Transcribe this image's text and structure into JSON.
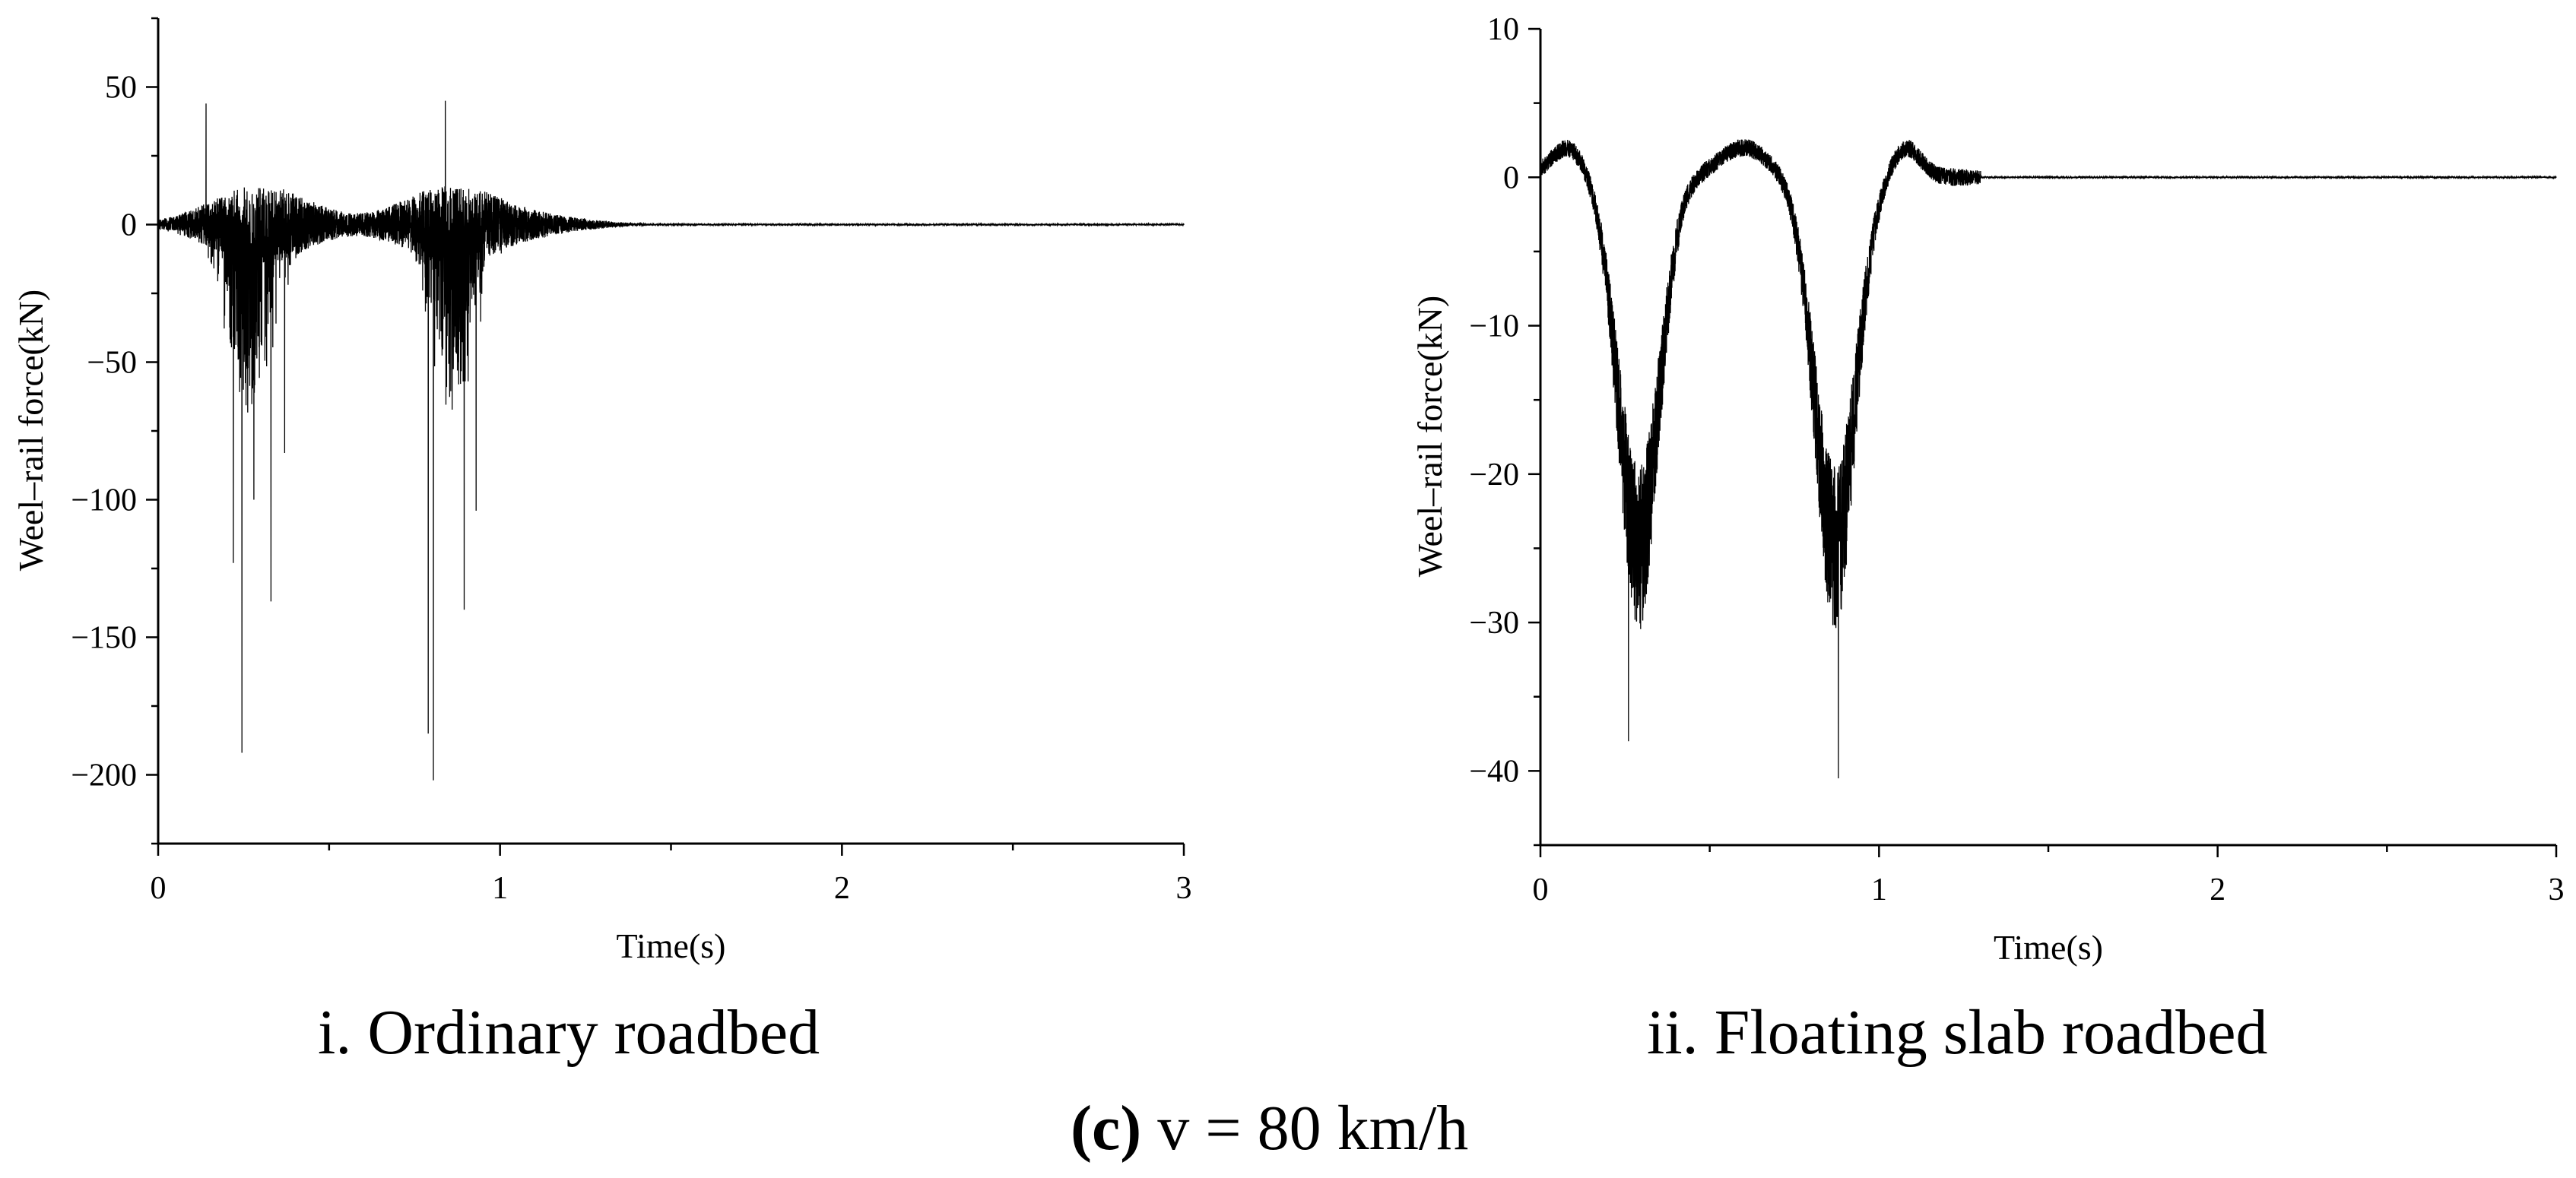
{
  "chart_data": [
    {
      "type": "line",
      "title": "i. Ordinary roadbed",
      "xlabel": "Time(s)",
      "ylabel": "Weel–rail force(kN)",
      "xlim": [
        0,
        3
      ],
      "ylim": [
        -225,
        75
      ],
      "xticks": [
        0,
        1,
        2,
        3
      ],
      "xtick_labels": [
        "0",
        "1",
        "2",
        "3"
      ],
      "yticks": [
        50,
        0,
        -50,
        -100,
        -150,
        -200
      ],
      "ytick_labels": [
        "50",
        "0",
        "−50",
        "−100",
        "−150",
        "−200"
      ],
      "series": [
        {
          "name": "Wheel-rail force",
          "peaks": [
            {
              "t": 0.14,
              "value": 44
            },
            {
              "t": 0.22,
              "value": -123
            },
            {
              "t": 0.245,
              "value": -192
            },
            {
              "t": 0.28,
              "value": -100
            },
            {
              "t": 0.33,
              "value": -137
            },
            {
              "t": 0.37,
              "value": -83
            },
            {
              "t": 0.79,
              "value": -185
            },
            {
              "t": 0.805,
              "value": -202
            },
            {
              "t": 0.84,
              "value": 45
            },
            {
              "t": 0.895,
              "value": -140
            },
            {
              "t": 0.93,
              "value": -104
            }
          ],
          "settles_to": 0,
          "settle_time": 1.5
        }
      ]
    },
    {
      "type": "line",
      "title": "ii. Floating slab roadbed",
      "xlabel": "Time(s)",
      "ylabel": "Weel–rail force(kN)",
      "xlim": [
        0,
        3
      ],
      "ylim": [
        -45,
        10
      ],
      "xticks": [
        0,
        1,
        2,
        3
      ],
      "xtick_labels": [
        "0",
        "1",
        "2",
        "3"
      ],
      "yticks": [
        10,
        0,
        -10,
        -20,
        -30,
        -40
      ],
      "ytick_labels": [
        "10",
        "0",
        "−10",
        "−20",
        "−30",
        "−40"
      ],
      "series": [
        {
          "name": "Wheel-rail force",
          "peaks": [
            {
              "t": 0.08,
              "value": 2
            },
            {
              "t": 0.26,
              "value": -38
            },
            {
              "t": 0.3,
              "value": -26
            },
            {
              "t": 0.6,
              "value": 1.5
            },
            {
              "t": 0.88,
              "value": -40.5
            },
            {
              "t": 1.08,
              "value": 1.5
            }
          ],
          "settles_to": 0,
          "settle_time": 1.3
        }
      ]
    }
  ],
  "captions": {
    "left": "i. Ordinary roadbed",
    "right": "ii. Floating slab roadbed",
    "main_label": "(c)",
    "main_text": " v = 80 km/h"
  }
}
